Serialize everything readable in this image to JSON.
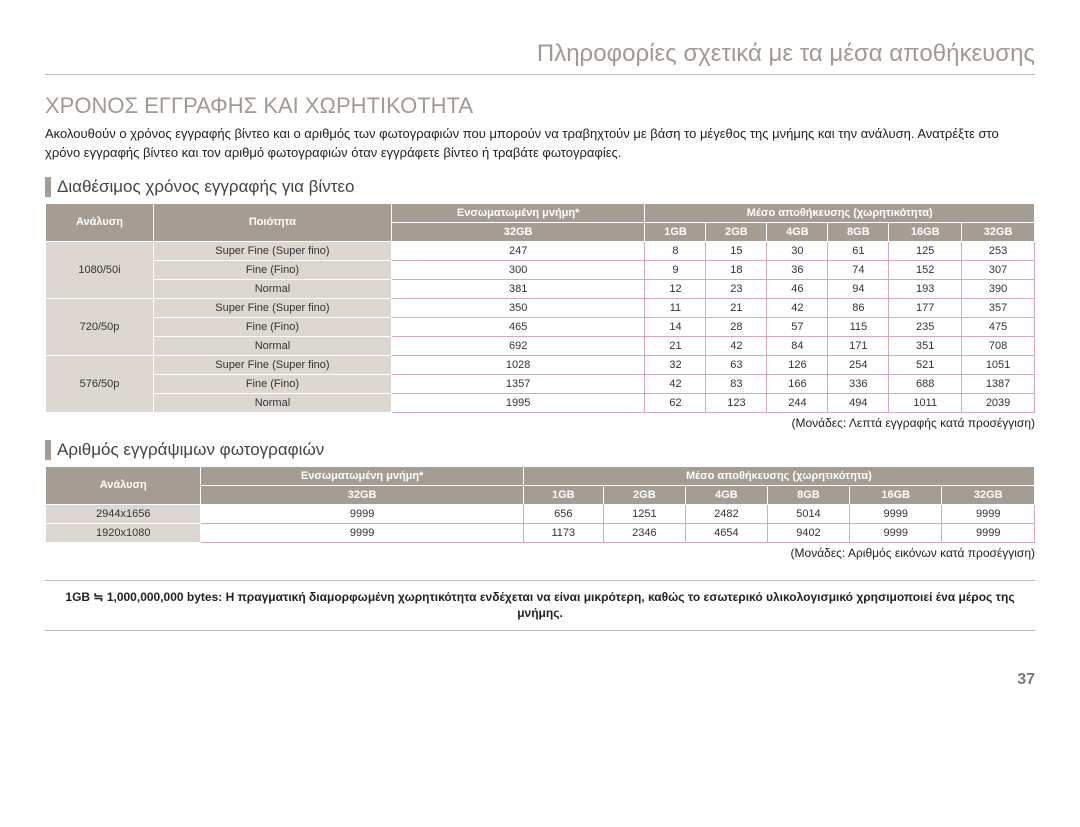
{
  "topTitle": "Πληροφορίες σχετικά με τα μέσα αποθήκευσης",
  "sectionTitle": "ΧΡΟΝΟΣ ΕΓΓΡΑΦΗΣ ΚΑΙ ΧΩΡΗΤΙΚΟΤΗΤΑ",
  "intro": "Ακολουθούν ο χρόνος εγγραφής βίντεο και ο αριθμός των φωτογραφιών που μπορούν να τραβηχτούν με βάση το μέγεθος της μνήμης και την ανάλυση. Ανατρέξτε στο χρόνο εγγραφής βίντεο και τον αριθμό φωτογραφιών όταν εγγράφετε βίντεο ή τραβάτε φωτογραφίες.",
  "video": {
    "heading": "Διαθέσιμος χρόνος εγγραφής για βίντεο",
    "headers": {
      "resolution": "Ανάλυση",
      "quality": "Ποιότητα",
      "builtin": "Ενσωματωμένη μνήμη*",
      "media": "Μέσο αποθήκευσης (χωρητικότητα)",
      "caps": [
        "32GB",
        "1GB",
        "2GB",
        "4GB",
        "8GB",
        "16GB",
        "32GB"
      ]
    },
    "groups": [
      {
        "resolution": "1080/50i",
        "rows": [
          {
            "quality": "Super Fine (Super fino)",
            "vals": [
              "247",
              "8",
              "15",
              "30",
              "61",
              "125",
              "253"
            ]
          },
          {
            "quality": "Fine (Fino)",
            "vals": [
              "300",
              "9",
              "18",
              "36",
              "74",
              "152",
              "307"
            ]
          },
          {
            "quality": "Normal",
            "vals": [
              "381",
              "12",
              "23",
              "46",
              "94",
              "193",
              "390"
            ]
          }
        ]
      },
      {
        "resolution": "720/50p",
        "rows": [
          {
            "quality": "Super Fine (Super fino)",
            "vals": [
              "350",
              "11",
              "21",
              "42",
              "86",
              "177",
              "357"
            ]
          },
          {
            "quality": "Fine (Fino)",
            "vals": [
              "465",
              "14",
              "28",
              "57",
              "115",
              "235",
              "475"
            ]
          },
          {
            "quality": "Normal",
            "vals": [
              "692",
              "21",
              "42",
              "84",
              "171",
              "351",
              "708"
            ]
          }
        ]
      },
      {
        "resolution": "576/50p",
        "rows": [
          {
            "quality": "Super Fine (Super fino)",
            "vals": [
              "1028",
              "32",
              "63",
              "126",
              "254",
              "521",
              "1051"
            ]
          },
          {
            "quality": "Fine (Fino)",
            "vals": [
              "1357",
              "42",
              "83",
              "166",
              "336",
              "688",
              "1387"
            ]
          },
          {
            "quality": "Normal",
            "vals": [
              "1995",
              "62",
              "123",
              "244",
              "494",
              "1011",
              "2039"
            ]
          }
        ]
      }
    ],
    "units": "(Μονάδες: Λεπτά εγγραφής κατά προσέγγιση)"
  },
  "photo": {
    "heading": "Αριθμός εγγράψιμων φωτογραφιών",
    "headers": {
      "resolution": "Ανάλυση",
      "builtin": "Ενσωματωμένη μνήμη*",
      "media": "Μέσο αποθήκευσης (χωρητικότητα)",
      "caps": [
        "32GB",
        "1GB",
        "2GB",
        "4GB",
        "8GB",
        "16GB",
        "32GB"
      ]
    },
    "rows": [
      {
        "resolution": "2944x1656",
        "vals": [
          "9999",
          "656",
          "1251",
          "2482",
          "5014",
          "9999",
          "9999"
        ]
      },
      {
        "resolution": "1920x1080",
        "vals": [
          "9999",
          "1173",
          "2346",
          "4654",
          "9402",
          "9999",
          "9999"
        ]
      }
    ],
    "units": "(Μονάδες: Αριθμός εικόνων κατά προσέγγιση)"
  },
  "footnote": "1GB ≒ 1,000,000,000 bytes: Η πραγματική διαμορφωμένη χωρητικότητα ενδέχεται να είναι μικρότερη, καθώς το εσωτερικό υλικολογισμικό χρησιμοποιεί ένα μέρος της μνήμης.",
  "pageNumber": "37",
  "style": {
    "header_bg": "#a59d93",
    "cell_border": "#d4a8c0",
    "label_bg": "#dcd7d0"
  }
}
